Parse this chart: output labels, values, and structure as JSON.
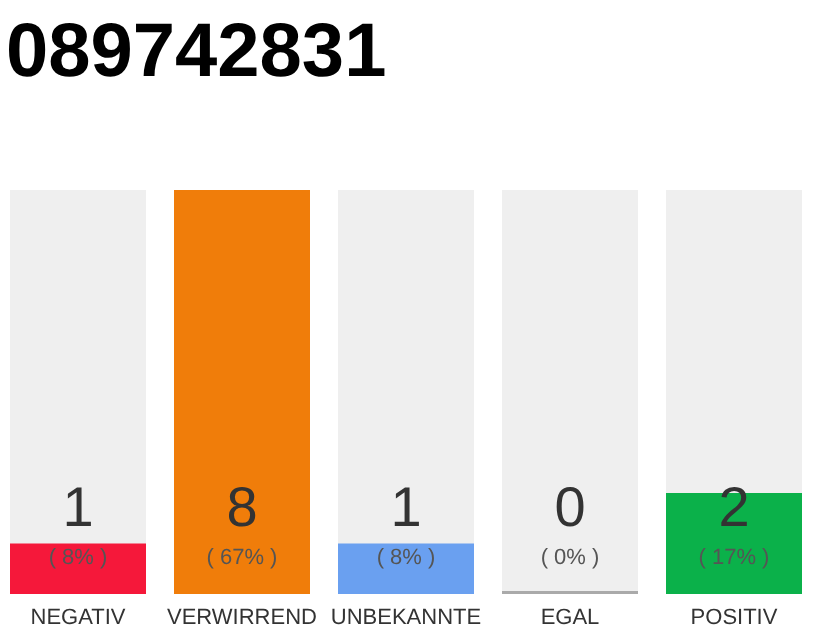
{
  "chart_data": {
    "type": "bar",
    "title": "089742831",
    "categories": [
      "NEGATIV",
      "VERWIRREND",
      "UNBEKANNTE",
      "EGAL",
      "POSITIV"
    ],
    "values": [
      1,
      8,
      1,
      0,
      2
    ],
    "colors": [
      "#f5183a",
      "#f07d0a",
      "#6aa0f0",
      "#aaaaaa",
      "#0bb14a"
    ],
    "ylim": [
      0,
      8
    ],
    "tick_labels": "x",
    "data_labels": true,
    "annotations": [
      "( 8% )",
      "( 67% )",
      "( 8% )",
      "( 0% )",
      "( 17% )"
    ]
  }
}
